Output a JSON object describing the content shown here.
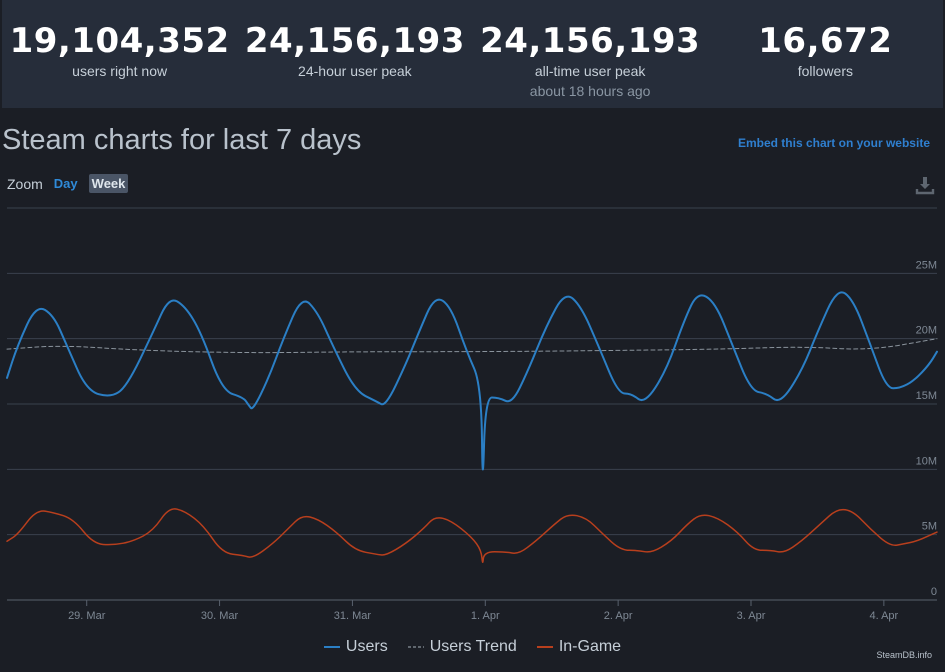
{
  "stats": [
    {
      "value": "19,104,352",
      "label": "users right now"
    },
    {
      "value": "24,156,193",
      "label": "24-hour user peak"
    },
    {
      "value": "24,156,193",
      "label": "all-time user peak",
      "sub": "about 18 hours ago"
    },
    {
      "value": "16,672",
      "label": "followers"
    }
  ],
  "header": {
    "title": "Steam charts for last 7 days",
    "embed_label": "Embed this chart on your website",
    "zoom_label": "Zoom",
    "zoom_day": "Day",
    "zoom_week": "Week"
  },
  "legend": {
    "users": "Users",
    "trend": "Users Trend",
    "ingame": "In-Game"
  },
  "credit": "SteamDB.info",
  "colors": {
    "users": "#2b7fc5",
    "trend": "#8a939c",
    "ingame": "#b83f1d",
    "grid": "#3a414d"
  },
  "chart_data": {
    "type": "line",
    "title": "Steam charts for last 7 days",
    "xlabel": "",
    "ylabel": "",
    "x_range_days": [
      0,
      7
    ],
    "ylim": [
      0,
      30000000
    ],
    "y_ticks": [
      {
        "value": 0,
        "label": "0"
      },
      {
        "value": 5000000,
        "label": "5M"
      },
      {
        "value": 10000000,
        "label": "10M"
      },
      {
        "value": 15000000,
        "label": "15M"
      },
      {
        "value": 20000000,
        "label": "20M"
      },
      {
        "value": 25000000,
        "label": "25M"
      }
    ],
    "x_ticks": [
      {
        "value": 0.6,
        "label": "29. Mar"
      },
      {
        "value": 1.6,
        "label": "30. Mar"
      },
      {
        "value": 2.6,
        "label": "31. Mar"
      },
      {
        "value": 3.6,
        "label": "1. Apr"
      },
      {
        "value": 4.6,
        "label": "2. Apr"
      },
      {
        "value": 5.6,
        "label": "3. Apr"
      },
      {
        "value": 6.6,
        "label": "4. Apr"
      }
    ],
    "series": [
      {
        "name": "Users",
        "points": [
          [
            0.0,
            17.0
          ],
          [
            0.08,
            19.5
          ],
          [
            0.22,
            22.6
          ],
          [
            0.35,
            21.8
          ],
          [
            0.45,
            19.5
          ],
          [
            0.6,
            16.0
          ],
          [
            0.78,
            15.5
          ],
          [
            0.9,
            16.3
          ],
          [
            1.1,
            20.5
          ],
          [
            1.22,
            23.2
          ],
          [
            1.34,
            22.5
          ],
          [
            1.46,
            20.5
          ],
          [
            1.62,
            16.0
          ],
          [
            1.78,
            15.5
          ],
          [
            1.82,
            14.9
          ],
          [
            1.85,
            14.5
          ],
          [
            1.97,
            17.0
          ],
          [
            2.08,
            20.0
          ],
          [
            2.22,
            23.3
          ],
          [
            2.34,
            22.0
          ],
          [
            2.45,
            19.5
          ],
          [
            2.62,
            16.0
          ],
          [
            2.78,
            15.2
          ],
          [
            2.85,
            14.8
          ],
          [
            3.0,
            18.0
          ],
          [
            3.1,
            20.5
          ],
          [
            3.22,
            23.3
          ],
          [
            3.34,
            22.5
          ],
          [
            3.46,
            19.0
          ],
          [
            3.57,
            16.5
          ],
          [
            3.58,
            8.0
          ],
          [
            3.6,
            15.5
          ],
          [
            3.7,
            15.5
          ],
          [
            3.8,
            15.0
          ],
          [
            3.92,
            17.5
          ],
          [
            4.06,
            21.0
          ],
          [
            4.2,
            23.6
          ],
          [
            4.32,
            22.5
          ],
          [
            4.45,
            19.5
          ],
          [
            4.6,
            15.8
          ],
          [
            4.7,
            15.8
          ],
          [
            4.8,
            15.0
          ],
          [
            4.96,
            17.5
          ],
          [
            5.1,
            21.5
          ],
          [
            5.2,
            23.6
          ],
          [
            5.33,
            22.8
          ],
          [
            5.46,
            19.5
          ],
          [
            5.6,
            16.0
          ],
          [
            5.72,
            15.8
          ],
          [
            5.82,
            15.0
          ],
          [
            5.98,
            17.5
          ],
          [
            6.1,
            20.5
          ],
          [
            6.25,
            23.9
          ],
          [
            6.37,
            23.0
          ],
          [
            6.5,
            19.5
          ],
          [
            6.62,
            16.2
          ],
          [
            6.72,
            16.2
          ],
          [
            6.83,
            16.8
          ],
          [
            6.94,
            18.0
          ],
          [
            7.0,
            19.0
          ]
        ]
      },
      {
        "name": "Users Trend",
        "points": [
          [
            0.0,
            19.2
          ],
          [
            0.4,
            19.5
          ],
          [
            1.0,
            19.1
          ],
          [
            1.8,
            18.9
          ],
          [
            2.6,
            19.0
          ],
          [
            3.6,
            19.0
          ],
          [
            4.6,
            19.1
          ],
          [
            5.4,
            19.2
          ],
          [
            6.0,
            19.4
          ],
          [
            6.5,
            19.1
          ],
          [
            7.0,
            20.0
          ]
        ]
      },
      {
        "name": "In-Game",
        "points": [
          [
            0.0,
            4.5
          ],
          [
            0.08,
            5.0
          ],
          [
            0.22,
            6.9
          ],
          [
            0.35,
            6.7
          ],
          [
            0.5,
            6.2
          ],
          [
            0.65,
            4.3
          ],
          [
            0.8,
            4.2
          ],
          [
            0.95,
            4.5
          ],
          [
            1.1,
            5.3
          ],
          [
            1.22,
            7.1
          ],
          [
            1.34,
            6.8
          ],
          [
            1.48,
            5.7
          ],
          [
            1.62,
            3.6
          ],
          [
            1.78,
            3.4
          ],
          [
            1.85,
            3.2
          ],
          [
            2.0,
            4.3
          ],
          [
            2.12,
            5.5
          ],
          [
            2.22,
            6.5
          ],
          [
            2.34,
            6.2
          ],
          [
            2.48,
            5.2
          ],
          [
            2.62,
            3.8
          ],
          [
            2.78,
            3.5
          ],
          [
            2.85,
            3.4
          ],
          [
            3.0,
            4.3
          ],
          [
            3.14,
            5.5
          ],
          [
            3.22,
            6.4
          ],
          [
            3.34,
            6.1
          ],
          [
            3.5,
            4.8
          ],
          [
            3.57,
            3.8
          ],
          [
            3.58,
            2.6
          ],
          [
            3.59,
            3.7
          ],
          [
            3.75,
            3.7
          ],
          [
            3.85,
            3.5
          ],
          [
            3.98,
            4.5
          ],
          [
            4.12,
            5.8
          ],
          [
            4.22,
            6.6
          ],
          [
            4.36,
            6.3
          ],
          [
            4.48,
            5.1
          ],
          [
            4.62,
            3.8
          ],
          [
            4.75,
            3.8
          ],
          [
            4.85,
            3.6
          ],
          [
            5.0,
            4.5
          ],
          [
            5.12,
            5.8
          ],
          [
            5.22,
            6.6
          ],
          [
            5.35,
            6.3
          ],
          [
            5.5,
            5.2
          ],
          [
            5.62,
            3.8
          ],
          [
            5.75,
            3.8
          ],
          [
            5.85,
            3.6
          ],
          [
            5.98,
            4.5
          ],
          [
            6.12,
            5.8
          ],
          [
            6.25,
            7.0
          ],
          [
            6.37,
            6.8
          ],
          [
            6.5,
            5.4
          ],
          [
            6.65,
            4.1
          ],
          [
            6.75,
            4.3
          ],
          [
            6.85,
            4.5
          ],
          [
            7.0,
            5.2
          ]
        ]
      }
    ]
  }
}
